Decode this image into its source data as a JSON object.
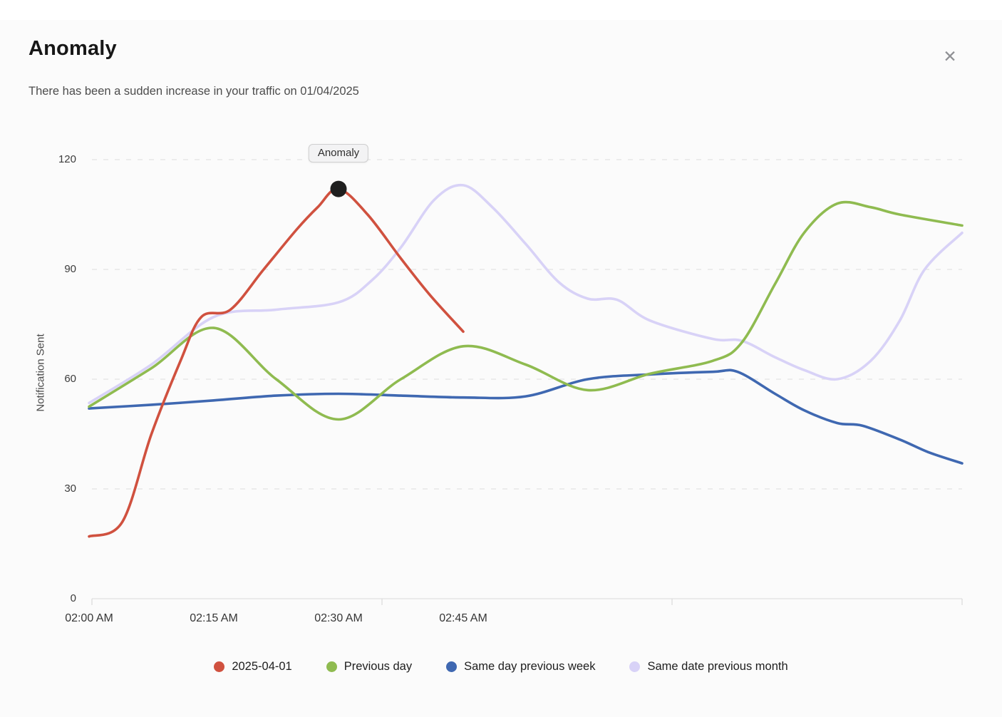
{
  "dialog": {
    "title": "Anomaly",
    "subtitle": "There has been a sudden increase in your traffic on 01/04/2025",
    "close_glyph": "✕"
  },
  "chart_data": {
    "type": "line",
    "smooth": true,
    "grid": "horizontal dashed",
    "legend_position": "bottom",
    "x_axis": {
      "tick_labels": [
        "02:00 AM",
        "02:15 AM",
        "02:30 AM",
        "02:45 AM"
      ],
      "tick_minutes": [
        0,
        15,
        30,
        45
      ],
      "range_minutes": [
        0,
        105
      ]
    },
    "y_axis": {
      "title": "Notification Sent",
      "ticks": [
        0,
        30,
        60,
        90,
        120
      ],
      "ylim": [
        0,
        120
      ]
    },
    "annotation": {
      "label": "Anomaly",
      "series": "2025-04-01",
      "t": 30,
      "value": 112,
      "dot_color": "#1f1f1f"
    },
    "series": [
      {
        "name": "2025-04-01",
        "color": "#d0513f",
        "points": [
          [
            0,
            17
          ],
          [
            4,
            21
          ],
          [
            7.5,
            45
          ],
          [
            11,
            65
          ],
          [
            13.5,
            77
          ],
          [
            17,
            79
          ],
          [
            21,
            90
          ],
          [
            25,
            101
          ],
          [
            27.5,
            107
          ],
          [
            30,
            112
          ],
          [
            33.5,
            105
          ],
          [
            37.5,
            93
          ],
          [
            41,
            83
          ],
          [
            45,
            73
          ]
        ]
      },
      {
        "name": "Previous day",
        "color": "#8fbb50",
        "points": [
          [
            0,
            52.5
          ],
          [
            7.5,
            63
          ],
          [
            15,
            74
          ],
          [
            22.5,
            60
          ],
          [
            30,
            49
          ],
          [
            37.5,
            60
          ],
          [
            45,
            69
          ],
          [
            52.5,
            64
          ],
          [
            60,
            57
          ],
          [
            67.5,
            61.5
          ],
          [
            75,
            65
          ],
          [
            78.5,
            70
          ],
          [
            82.5,
            86
          ],
          [
            86,
            100
          ],
          [
            90,
            108
          ],
          [
            94,
            107
          ],
          [
            97.5,
            105
          ],
          [
            105,
            102
          ]
        ]
      },
      {
        "name": "Same day previous week",
        "color": "#3f68b1",
        "points": [
          [
            0,
            52
          ],
          [
            7.5,
            53
          ],
          [
            15,
            54.2
          ],
          [
            22.5,
            55.5
          ],
          [
            30,
            56
          ],
          [
            37.5,
            55.5
          ],
          [
            45,
            55
          ],
          [
            52.5,
            55.3
          ],
          [
            60,
            60
          ],
          [
            67.5,
            61.3
          ],
          [
            75,
            62
          ],
          [
            78,
            62
          ],
          [
            82.5,
            56
          ],
          [
            86,
            51.5
          ],
          [
            90,
            48
          ],
          [
            93,
            47.3
          ],
          [
            97.5,
            43.5
          ],
          [
            101,
            40
          ],
          [
            105,
            37
          ]
        ]
      },
      {
        "name": "Same date previous month",
        "color": "#d8d2f7",
        "points": [
          [
            0,
            53.5
          ],
          [
            7.5,
            64
          ],
          [
            15,
            77
          ],
          [
            22.5,
            79
          ],
          [
            30,
            81
          ],
          [
            34,
            87
          ],
          [
            37.5,
            96
          ],
          [
            41.5,
            109
          ],
          [
            45,
            113
          ],
          [
            48.5,
            107
          ],
          [
            52.5,
            97
          ],
          [
            56.5,
            86.5
          ],
          [
            60,
            82
          ],
          [
            63.5,
            81.7
          ],
          [
            67.5,
            76
          ],
          [
            75,
            71
          ],
          [
            78.5,
            70.5
          ],
          [
            82.5,
            66
          ],
          [
            86,
            62.5
          ],
          [
            90,
            60
          ],
          [
            94,
            65
          ],
          [
            97.5,
            76
          ],
          [
            100.5,
            90
          ],
          [
            105,
            100
          ]
        ]
      }
    ]
  }
}
